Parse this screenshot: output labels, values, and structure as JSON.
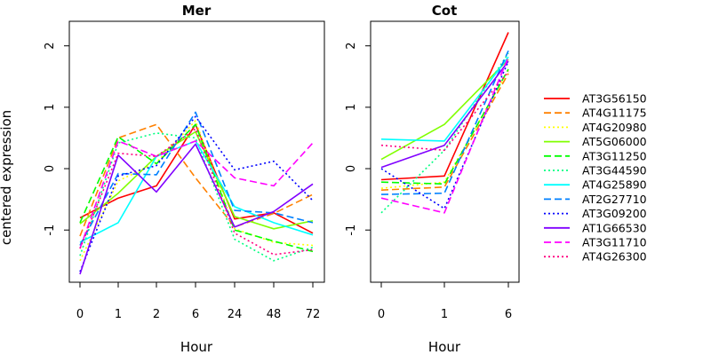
{
  "chart_data": [
    {
      "type": "line",
      "title": "Mer",
      "xlabel": "Hour",
      "ylabel": "centered expression",
      "categories": [
        "0",
        "1",
        "2",
        "6",
        "24",
        "48",
        "72"
      ],
      "ylim": [
        -1.85,
        2.4
      ],
      "yticks": [
        "-1",
        "0",
        "1",
        "2"
      ],
      "series": [
        {
          "name": "AT3G56150",
          "values": [
            -0.8,
            -0.48,
            -0.28,
            0.72,
            -0.82,
            -0.72,
            -1.05
          ]
        },
        {
          "name": "AT4G11175",
          "values": [
            -1.1,
            0.5,
            0.72,
            -0.15,
            -0.95,
            -0.73,
            -0.42
          ]
        },
        {
          "name": "AT4G20980",
          "values": [
            -1.5,
            -0.2,
            0.1,
            0.78,
            -0.98,
            -1.2,
            -1.25
          ]
        },
        {
          "name": "AT5G06000",
          "values": [
            -0.9,
            -0.4,
            0.2,
            0.6,
            -0.78,
            -0.98,
            -0.85
          ]
        },
        {
          "name": "AT3G11250",
          "values": [
            -0.88,
            0.52,
            0.08,
            0.72,
            -1.0,
            -1.18,
            -1.35
          ]
        },
        {
          "name": "AT3G44590",
          "values": [
            -1.42,
            0.42,
            0.58,
            0.5,
            -1.15,
            -1.5,
            -1.28
          ]
        },
        {
          "name": "AT4G25890",
          "values": [
            -1.2,
            -0.88,
            0.2,
            0.45,
            -0.62,
            -0.88,
            -1.08
          ]
        },
        {
          "name": "AT2G27710",
          "values": [
            -1.25,
            -0.08,
            -0.1,
            0.92,
            -0.68,
            -0.72,
            -0.88
          ]
        },
        {
          "name": "AT3G09200",
          "values": [
            -1.68,
            -0.12,
            0.05,
            0.85,
            -0.02,
            0.12,
            -0.52
          ]
        },
        {
          "name": "AT1G66530",
          "values": [
            -1.72,
            0.22,
            -0.38,
            0.4,
            -0.95,
            -0.7,
            -0.25
          ]
        },
        {
          "name": "AT3G11710",
          "values": [
            -1.3,
            0.45,
            0.2,
            0.45,
            -0.15,
            -0.28,
            0.42
          ]
        },
        {
          "name": "AT4G26300",
          "values": [
            -1.3,
            0.25,
            0.2,
            0.65,
            -1.05,
            -1.4,
            -1.32
          ]
        }
      ]
    },
    {
      "type": "line",
      "title": "Cot",
      "xlabel": "Hour",
      "categories": [
        "0",
        "1",
        "6"
      ],
      "ylim": [
        -1.85,
        2.4
      ],
      "yticks": [
        "-1",
        "0",
        "1",
        "2"
      ],
      "series": [
        {
          "name": "AT3G56150",
          "values": [
            -0.18,
            -0.12,
            2.22
          ]
        },
        {
          "name": "AT4G11175",
          "values": [
            -0.35,
            -0.3,
            1.55
          ]
        },
        {
          "name": "AT4G20980",
          "values": [
            -0.32,
            -0.22,
            1.6
          ]
        },
        {
          "name": "AT5G06000",
          "values": [
            0.15,
            0.72,
            1.78
          ]
        },
        {
          "name": "AT3G11250",
          "values": [
            -0.22,
            -0.25,
            1.62
          ]
        },
        {
          "name": "AT3G44590",
          "values": [
            -0.72,
            0.3,
            1.88
          ]
        },
        {
          "name": "AT4G25890",
          "values": [
            0.48,
            0.45,
            1.82
          ]
        },
        {
          "name": "AT2G27710",
          "values": [
            -0.42,
            -0.4,
            1.92
          ]
        },
        {
          "name": "AT3G09200",
          "values": [
            0.0,
            -0.65,
            1.75
          ]
        },
        {
          "name": "AT1G66530",
          "values": [
            0.02,
            0.38,
            1.75
          ]
        },
        {
          "name": "AT3G11710",
          "values": [
            -0.48,
            -0.72,
            1.82
          ]
        },
        {
          "name": "AT4G26300",
          "values": [
            0.38,
            0.3,
            1.58
          ]
        }
      ]
    }
  ],
  "legend": {
    "placement": "right",
    "items": [
      {
        "label": "AT3G56150",
        "color": "#ff0000",
        "dash": "solid"
      },
      {
        "label": "AT4G11175",
        "color": "#ff8000",
        "dash": "longdash"
      },
      {
        "label": "AT4G20980",
        "color": "#ffff00",
        "dash": "dotted"
      },
      {
        "label": "AT5G06000",
        "color": "#80ff00",
        "dash": "solid"
      },
      {
        "label": "AT3G11250",
        "color": "#00ff00",
        "dash": "longdash"
      },
      {
        "label": "AT3G44590",
        "color": "#00ff80",
        "dash": "dotted"
      },
      {
        "label": "AT4G25890",
        "color": "#00ffff",
        "dash": "solid"
      },
      {
        "label": "AT2G27710",
        "color": "#0080ff",
        "dash": "longdash"
      },
      {
        "label": "AT3G09200",
        "color": "#0000ff",
        "dash": "dotted"
      },
      {
        "label": "AT1G66530",
        "color": "#8000ff",
        "dash": "solid"
      },
      {
        "label": "AT3G11710",
        "color": "#ff00ff",
        "dash": "longdash"
      },
      {
        "label": "AT4G26300",
        "color": "#ff0080",
        "dash": "dotted"
      }
    ]
  }
}
